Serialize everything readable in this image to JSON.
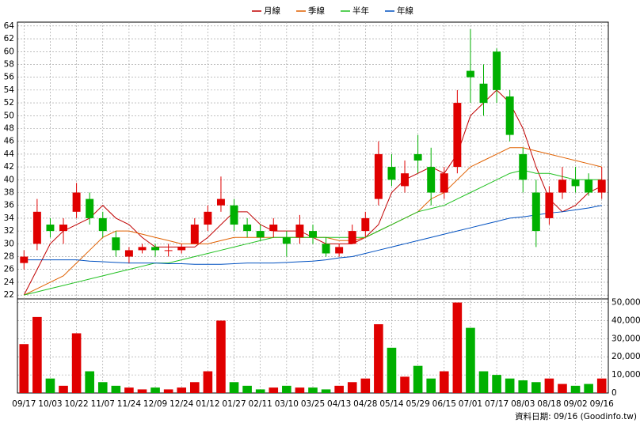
{
  "chart_data": [
    {
      "type": "candlestick",
      "categories": [
        "09/17",
        null,
        "10/03",
        null,
        "10/22",
        null,
        "11/07",
        null,
        "11/24",
        null,
        "12/09",
        null,
        "12/24",
        null,
        "01/12",
        null,
        "01/27",
        null,
        "02/11",
        null,
        "03/10",
        null,
        "03/25",
        null,
        "04/13",
        null,
        "04/28",
        null,
        "05/14",
        null,
        "05/29",
        null,
        "06/15",
        null,
        "07/01",
        null,
        "07/17",
        null,
        "08/03",
        null,
        "08/18",
        null,
        "09/02",
        null,
        "09/16"
      ],
      "open": [
        27,
        30,
        33,
        32,
        35,
        37,
        34,
        31,
        28,
        29,
        29.5,
        29,
        29,
        30,
        33,
        36,
        36,
        33,
        32,
        32,
        31,
        31,
        32,
        30,
        28.5,
        30,
        32,
        37,
        42,
        39,
        44,
        42,
        38,
        42,
        57,
        55,
        60,
        53,
        44,
        38,
        34,
        38,
        40,
        40,
        38
      ],
      "high": [
        29,
        37,
        34,
        34,
        39.5,
        38,
        35,
        32,
        29.5,
        30,
        30,
        30,
        30,
        34,
        36,
        40.5,
        37,
        34,
        33,
        34,
        32,
        34.5,
        33,
        31,
        30,
        33,
        35,
        46,
        44,
        43,
        47,
        45,
        42,
        54,
        63.5,
        58,
        60.5,
        54,
        45,
        40,
        39,
        42,
        42,
        41,
        42
      ],
      "low": [
        26,
        29,
        31,
        30,
        34,
        33,
        31,
        28,
        27,
        28.5,
        28,
        28,
        28.5,
        30,
        32,
        35,
        32,
        31,
        30.5,
        31,
        28,
        30,
        30,
        28,
        28,
        30,
        31,
        36,
        39,
        38,
        41,
        36,
        37,
        41,
        52,
        50,
        52,
        46,
        38,
        29.5,
        33,
        37,
        38,
        37.5,
        37
      ],
      "close": [
        28,
        35,
        32,
        33,
        38,
        34,
        32,
        29,
        29,
        29.5,
        29,
        29,
        29.5,
        33,
        35,
        37,
        33,
        32,
        31,
        33,
        30,
        33,
        31,
        28.5,
        29.5,
        32,
        34,
        44,
        40,
        41,
        43,
        38,
        41,
        52,
        56,
        52,
        54,
        47,
        40,
        32,
        38,
        40,
        39,
        38,
        40
      ],
      "up_color": "#e00000",
      "down_color": "#00b000",
      "series": [
        {
          "name": "月線",
          "color": "#c00000",
          "values": [
            22,
            26,
            30,
            32,
            33,
            34,
            36,
            34,
            33,
            31,
            29.5,
            29.5,
            29.5,
            29.5,
            31,
            33,
            35,
            35,
            33,
            32,
            32,
            32,
            31,
            30,
            30,
            30,
            31,
            33,
            38,
            40,
            41,
            42,
            41,
            44,
            50,
            52,
            54,
            52,
            48,
            42,
            37,
            35,
            36,
            38,
            39
          ]
        },
        {
          "name": "季線",
          "color": "#e06000",
          "values": [
            22,
            23,
            24,
            25,
            27,
            29,
            31,
            32,
            32,
            31.5,
            31,
            30.5,
            30,
            30,
            30,
            30.5,
            31,
            31,
            31,
            31,
            31,
            31,
            31,
            31,
            30.5,
            30.5,
            31,
            32,
            33,
            34,
            35,
            37,
            38,
            40,
            42,
            43,
            44,
            45,
            45,
            44.5,
            44,
            43.5,
            43,
            42.5,
            42
          ]
        },
        {
          "name": "半年",
          "color": "#20c020",
          "values": [
            22,
            22.5,
            23,
            23.5,
            24,
            24.5,
            25,
            25.5,
            26,
            26.5,
            27,
            27,
            27.5,
            28,
            28.5,
            29,
            29.5,
            30,
            30.5,
            31,
            31,
            31,
            31,
            31,
            31,
            31,
            31,
            32,
            33,
            34,
            35,
            35.5,
            36,
            37,
            38,
            39,
            40,
            41,
            41.5,
            41,
            41,
            40.5,
            40,
            40,
            40
          ]
        },
        {
          "name": "年線",
          "color": "#0050c0",
          "values": [
            27.5,
            27.5,
            27.5,
            27.5,
            27.5,
            27.3,
            27.2,
            27.1,
            27,
            27,
            27,
            26.9,
            26.9,
            26.8,
            26.8,
            26.8,
            26.9,
            27,
            27,
            27,
            27.1,
            27.2,
            27.3,
            27.5,
            27.8,
            28,
            28.5,
            29,
            29.5,
            30,
            30.5,
            31,
            31.5,
            32,
            32.5,
            33,
            33.5,
            34,
            34.2,
            34.5,
            34.8,
            35,
            35.3,
            35.6,
            36
          ]
        }
      ],
      "ylim": [
        21.4,
        64.6
      ],
      "yticks": [
        22,
        24,
        26,
        28,
        30,
        32,
        34,
        36,
        38,
        40,
        42,
        44,
        46,
        48,
        50,
        52,
        54,
        56,
        58,
        60,
        62,
        64
      ],
      "grid": true
    },
    {
      "type": "bar",
      "values": [
        27000,
        42000,
        8000,
        4000,
        33000,
        12000,
        6000,
        4000,
        3000,
        2000,
        3000,
        2000,
        3000,
        6000,
        12000,
        40000,
        6000,
        4000,
        2000,
        3000,
        4000,
        3000,
        3000,
        2000,
        4000,
        6000,
        8000,
        38000,
        25000,
        9000,
        15000,
        8000,
        12000,
        50000,
        36000,
        12000,
        10000,
        8000,
        7000,
        6000,
        8000,
        5000,
        4000,
        5000,
        8000
      ],
      "ylim": [
        0,
        52000
      ],
      "yticks": [
        0,
        {
          "value": 10000,
          "label": "10,000"
        },
        {
          "value": 20000,
          "label": "20,000"
        },
        {
          "value": 30000,
          "label": "30,000"
        },
        {
          "value": 40000,
          "label": "40,000"
        },
        {
          "value": 50000,
          "label": "50,000"
        }
      ],
      "axis_side": "right",
      "grid": true,
      "footer": "資料日期: 09/16 (Goodinfo.tw)"
    }
  ]
}
